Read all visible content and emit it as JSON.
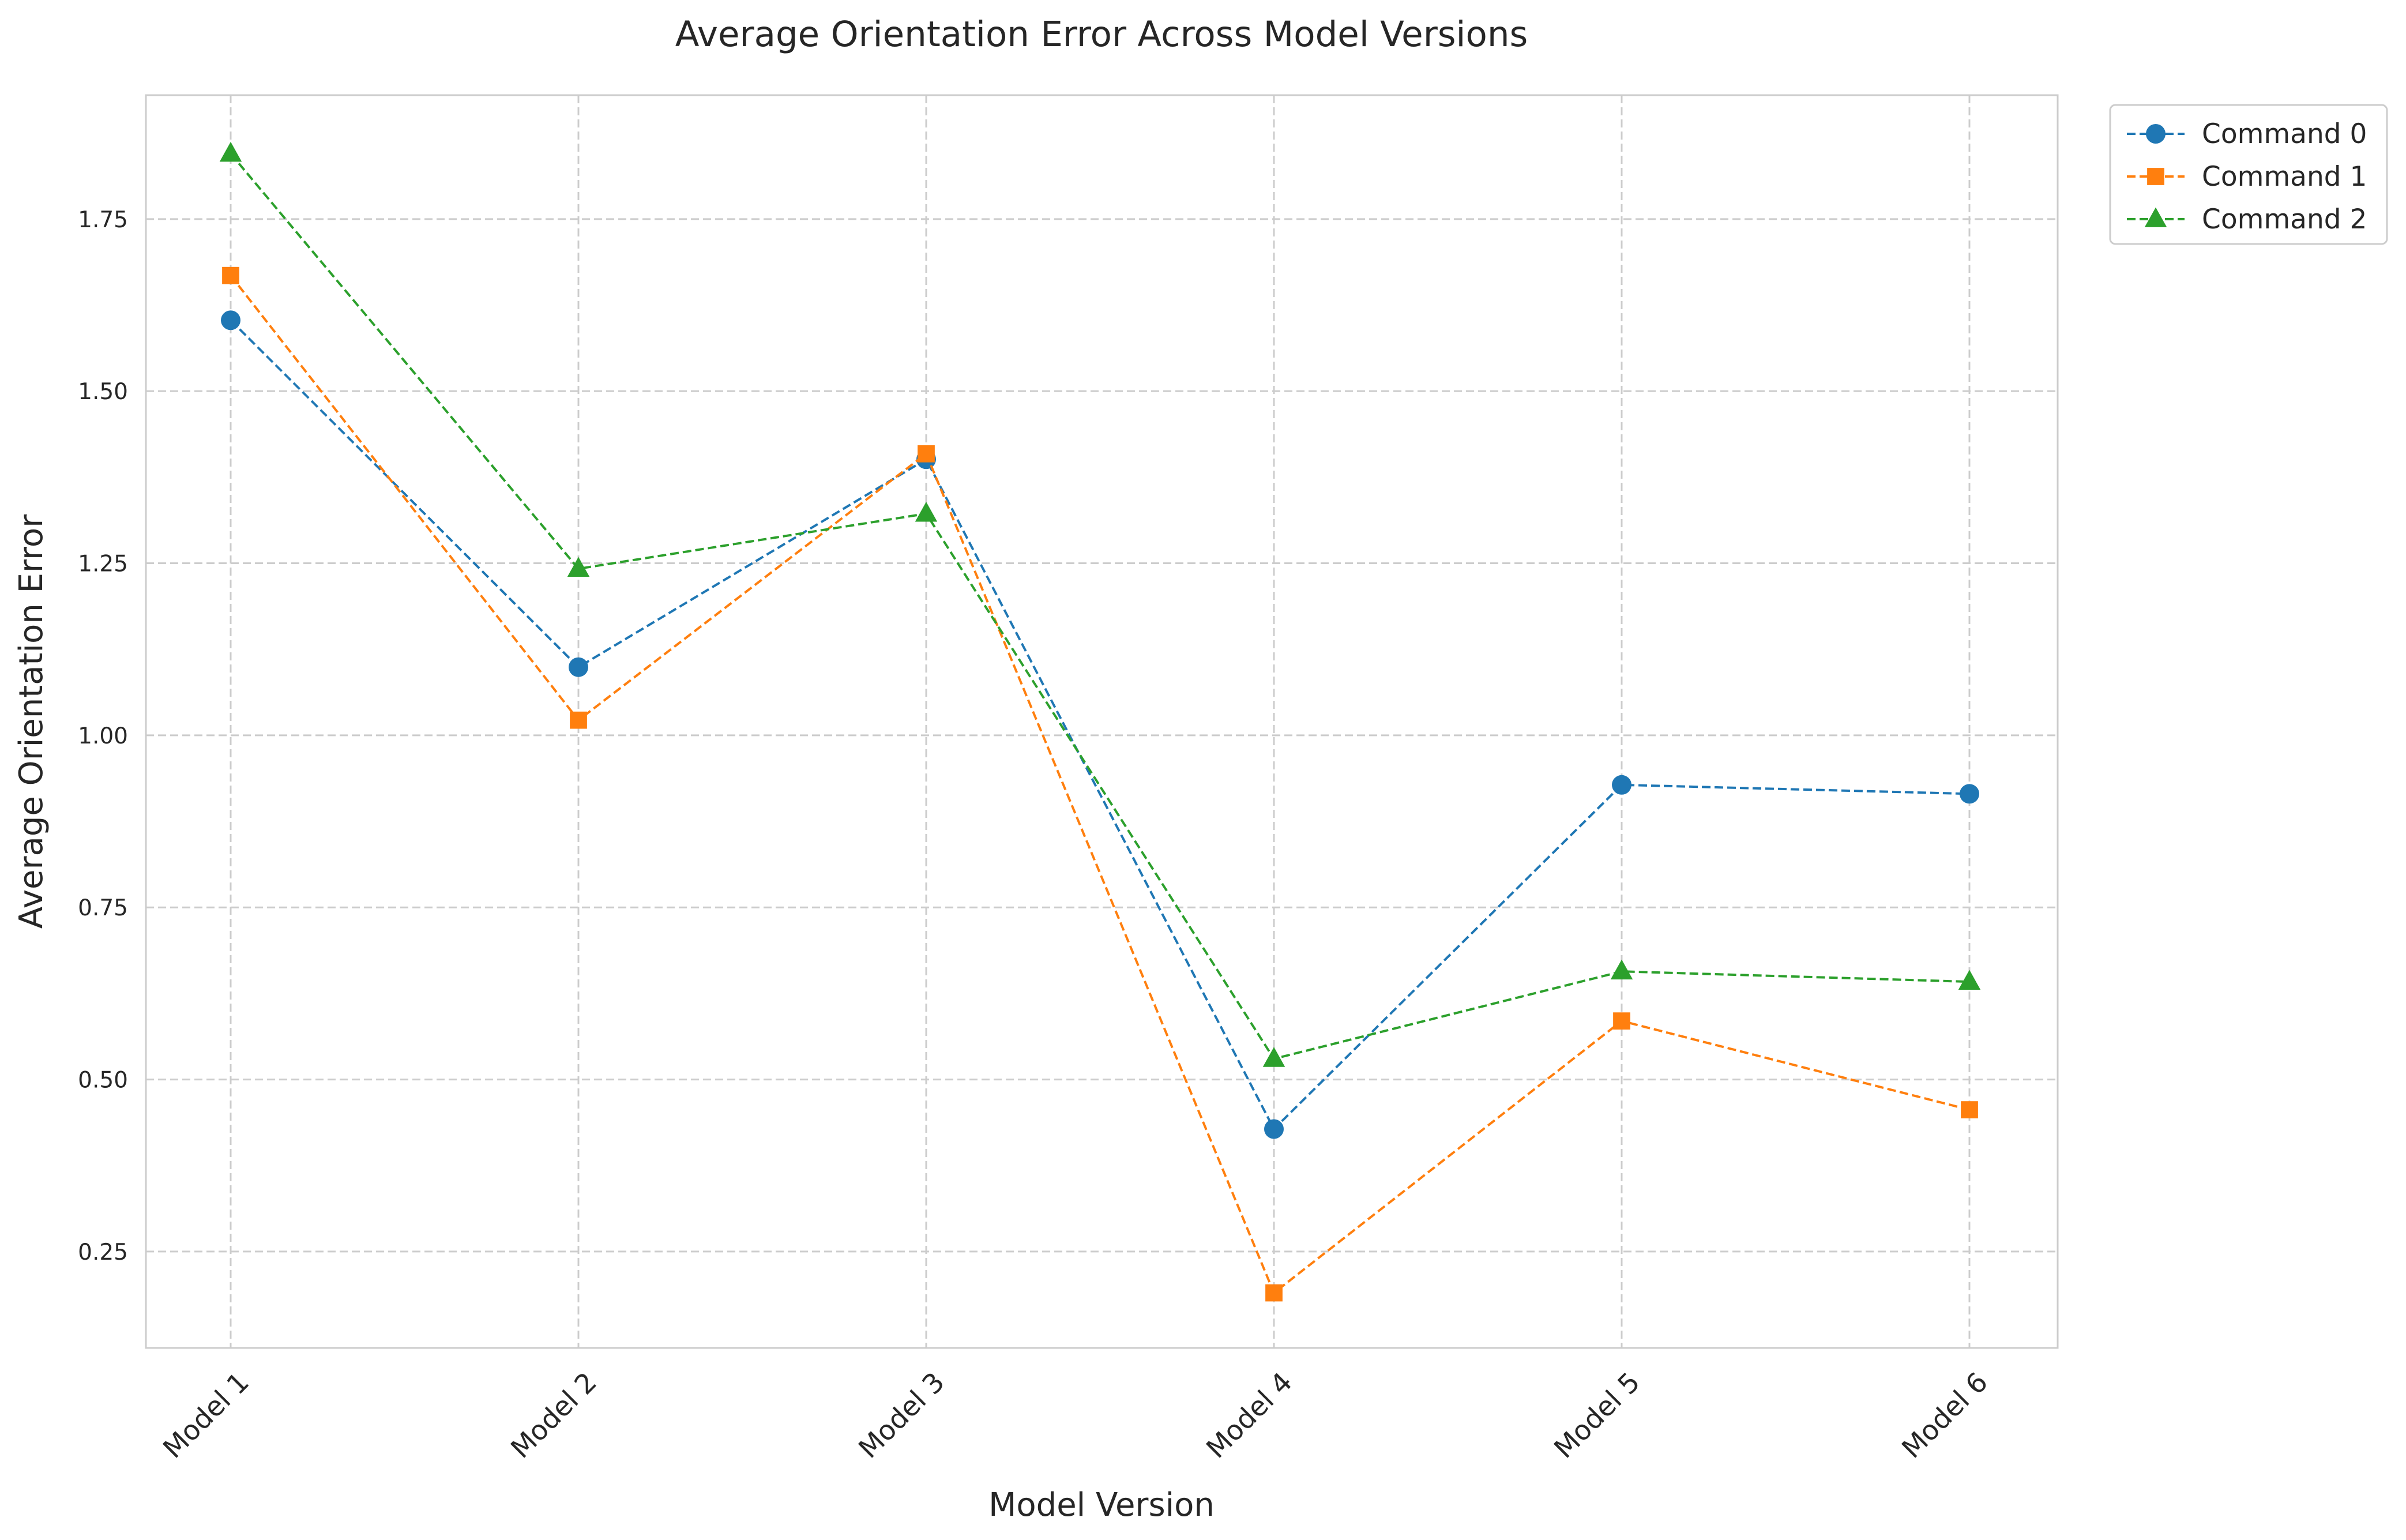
{
  "chart_data": {
    "type": "line",
    "title": "Average Orientation Error Across Model Versions",
    "xlabel": "Model Version",
    "ylabel": "Average Orientation Error",
    "categories": [
      "Model 1",
      "Model 2",
      "Model 3",
      "Model 4",
      "Model 5",
      "Model 6"
    ],
    "ylim": [
      0.11,
      1.93
    ],
    "yticks": [
      0.25,
      0.5,
      0.75,
      1.0,
      1.25,
      1.5,
      1.75
    ],
    "ytick_labels": [
      "0.25",
      "0.50",
      "0.75",
      "1.00",
      "1.25",
      "1.50",
      "1.75"
    ],
    "grid": true,
    "legend_position": "outside-top-right",
    "line_style": "dashed",
    "series": [
      {
        "name": "Command 0",
        "color": "#1f77b4",
        "marker": "circle",
        "values": [
          1.603,
          1.099,
          1.401,
          0.428,
          0.928,
          0.915
        ]
      },
      {
        "name": "Command 1",
        "color": "#ff7f0e",
        "marker": "square",
        "values": [
          1.668,
          1.022,
          1.409,
          0.19,
          0.585,
          0.456
        ]
      },
      {
        "name": "Command 2",
        "color": "#2ca02c",
        "marker": "triangle",
        "values": [
          1.845,
          1.242,
          1.322,
          0.53,
          0.657,
          0.642
        ]
      }
    ]
  }
}
